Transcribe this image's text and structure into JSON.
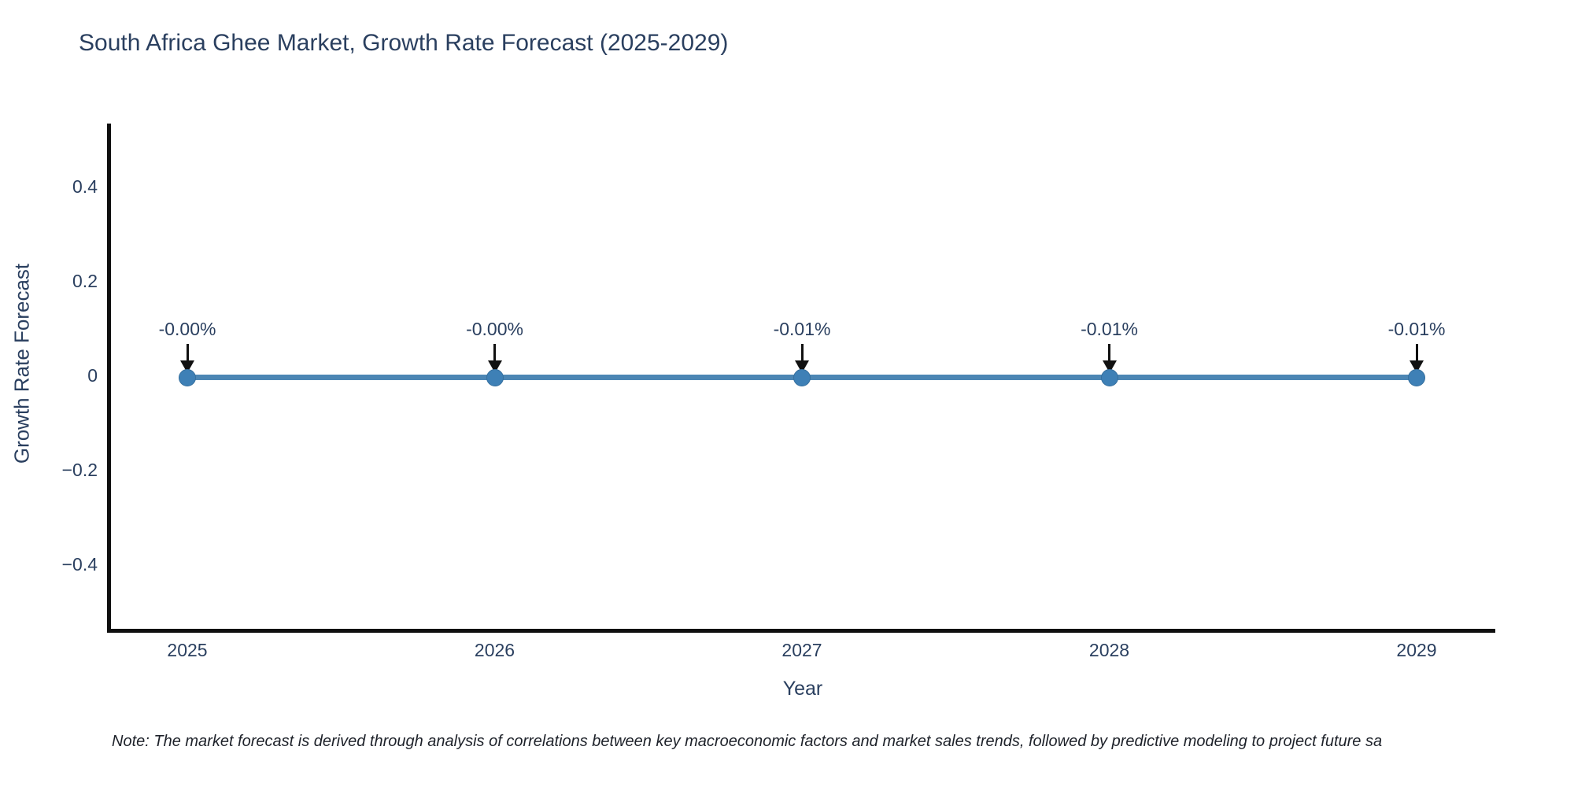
{
  "chart_data": {
    "type": "line",
    "title": "South Africa Ghee Market, Growth Rate Forecast (2025-2029)",
    "xlabel": "Year",
    "ylabel": "Growth Rate Forecast",
    "x": [
      2025,
      2026,
      2027,
      2028,
      2029
    ],
    "series": [
      {
        "name": "Growth Rate Forecast",
        "values_percent": [
          -0.001,
          -0.003,
          -0.006,
          -0.008,
          -0.01
        ],
        "point_labels": [
          "-0.00%",
          "-0.00%",
          "-0.01%",
          "-0.01%",
          "-0.01%"
        ]
      }
    ],
    "yticks": [
      "0.4",
      "0.2",
      "0",
      "−0.2",
      "−0.4"
    ],
    "ylim": [
      -0.52,
      0.52
    ],
    "grid": false,
    "legend": "none",
    "line_color": "#4c86b4",
    "marker_color": "#3e80b6",
    "arrow_color": "#111111",
    "axis_color": "#0f0f0f",
    "text_color": "#2a3f5f",
    "background_color": "#ffffff"
  },
  "footnote": {
    "text": "Note: The market forecast is derived through analysis of correlations between key macroeconomic factors and market sales trends, followed by predictive modeling to project future sa"
  }
}
